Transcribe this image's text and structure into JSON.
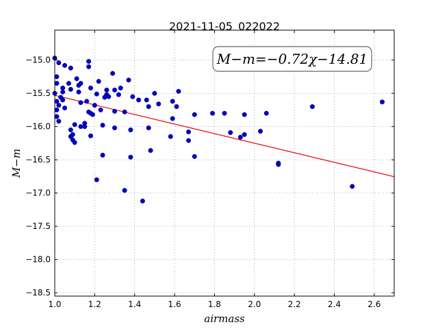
{
  "chart_data": {
    "type": "scatter",
    "title": "2021-11-05_022022",
    "xlabel": "airmass",
    "ylabel": "M−m",
    "xlim": [
      1.0,
      2.7
    ],
    "ylim": [
      -18.55,
      -14.55
    ],
    "y_inverted": true,
    "grid": true,
    "x_ticks": [
      "1.0",
      "1.2",
      "1.4",
      "1.6",
      "1.8",
      "2.0",
      "2.2",
      "2.4",
      "2.6"
    ],
    "y_ticks": [
      "−15.0",
      "−15.5",
      "−16.0",
      "−16.5",
      "−17.0",
      "−17.5",
      "−18.0",
      "−18.5"
    ],
    "annotation": "M−m=−0.72χ−14.81",
    "fit": {
      "slope": -0.72,
      "intercept": -14.81
    },
    "colors": {
      "points": "#0000cc",
      "fit_line": "#ee0000",
      "grid": "#999999"
    },
    "points": [
      [
        1.0,
        -14.97
      ],
      [
        1.01,
        -15.25
      ],
      [
        1.01,
        -15.35
      ],
      [
        1.0,
        -15.5
      ],
      [
        1.01,
        -15.62
      ],
      [
        1.02,
        -15.68
      ],
      [
        1.01,
        -15.75
      ],
      [
        1.01,
        -15.85
      ],
      [
        1.02,
        -15.92
      ],
      [
        1.02,
        -15.04
      ],
      [
        1.04,
        -15.42
      ],
      [
        1.04,
        -15.48
      ],
      [
        1.03,
        -15.56
      ],
      [
        1.04,
        -15.6
      ],
      [
        1.05,
        -15.08
      ],
      [
        1.05,
        -15.72
      ],
      [
        1.07,
        -15.35
      ],
      [
        1.08,
        -15.12
      ],
      [
        1.08,
        -15.44
      ],
      [
        1.08,
        -16.05
      ],
      [
        1.08,
        -16.15
      ],
      [
        1.09,
        -16.12
      ],
      [
        1.09,
        -16.2
      ],
      [
        1.1,
        -16.24
      ],
      [
        1.1,
        -15.97
      ],
      [
        1.11,
        -15.28
      ],
      [
        1.12,
        -15.38
      ],
      [
        1.12,
        -15.48
      ],
      [
        1.13,
        -15.64
      ],
      [
        1.13,
        -15.35
      ],
      [
        1.13,
        -16.0
      ],
      [
        1.15,
        -16.0
      ],
      [
        1.15,
        -15.95
      ],
      [
        1.16,
        -15.62
      ],
      [
        1.17,
        -15.02
      ],
      [
        1.17,
        -15.1
      ],
      [
        1.17,
        -15.78
      ],
      [
        1.18,
        -15.42
      ],
      [
        1.18,
        -15.8
      ],
      [
        1.19,
        -15.82
      ],
      [
        1.18,
        -16.14
      ],
      [
        1.2,
        -15.68
      ],
      [
        1.21,
        -15.51
      ],
      [
        1.22,
        -15.32
      ],
      [
        1.21,
        -16.8
      ],
      [
        1.23,
        -15.75
      ],
      [
        1.24,
        -15.98
      ],
      [
        1.24,
        -16.43
      ],
      [
        1.25,
        -15.56
      ],
      [
        1.26,
        -15.45
      ],
      [
        1.26,
        -15.52
      ],
      [
        1.27,
        -15.55
      ],
      [
        1.29,
        -15.2
      ],
      [
        1.3,
        -15.45
      ],
      [
        1.3,
        -15.77
      ],
      [
        1.3,
        -16.02
      ],
      [
        1.32,
        -15.52
      ],
      [
        1.33,
        -15.42
      ],
      [
        1.35,
        -15.78
      ],
      [
        1.35,
        -16.96
      ],
      [
        1.37,
        -15.3
      ],
      [
        1.38,
        -16.05
      ],
      [
        1.38,
        -16.46
      ],
      [
        1.39,
        -15.55
      ],
      [
        1.42,
        -15.6
      ],
      [
        1.44,
        -17.12
      ],
      [
        1.46,
        -15.6
      ],
      [
        1.47,
        -15.7
      ],
      [
        1.47,
        -16.02
      ],
      [
        1.48,
        -16.36
      ],
      [
        1.5,
        -15.5
      ],
      [
        1.52,
        -15.66
      ],
      [
        1.58,
        -16.15
      ],
      [
        1.59,
        -15.62
      ],
      [
        1.59,
        -15.88
      ],
      [
        1.61,
        -15.7
      ],
      [
        1.62,
        -15.47
      ],
      [
        1.67,
        -16.08
      ],
      [
        1.67,
        -16.21
      ],
      [
        1.7,
        -15.82
      ],
      [
        1.7,
        -16.45
      ],
      [
        1.79,
        -15.8
      ],
      [
        1.85,
        -15.8
      ],
      [
        1.88,
        -16.09
      ],
      [
        1.93,
        -16.16
      ],
      [
        1.95,
        -16.12
      ],
      [
        1.95,
        -15.82
      ],
      [
        2.03,
        -16.07
      ],
      [
        2.06,
        -15.8
      ],
      [
        2.12,
        -16.55
      ],
      [
        2.12,
        -16.57
      ],
      [
        2.29,
        -15.7
      ],
      [
        2.49,
        -16.9
      ],
      [
        2.64,
        -15.63
      ]
    ]
  }
}
